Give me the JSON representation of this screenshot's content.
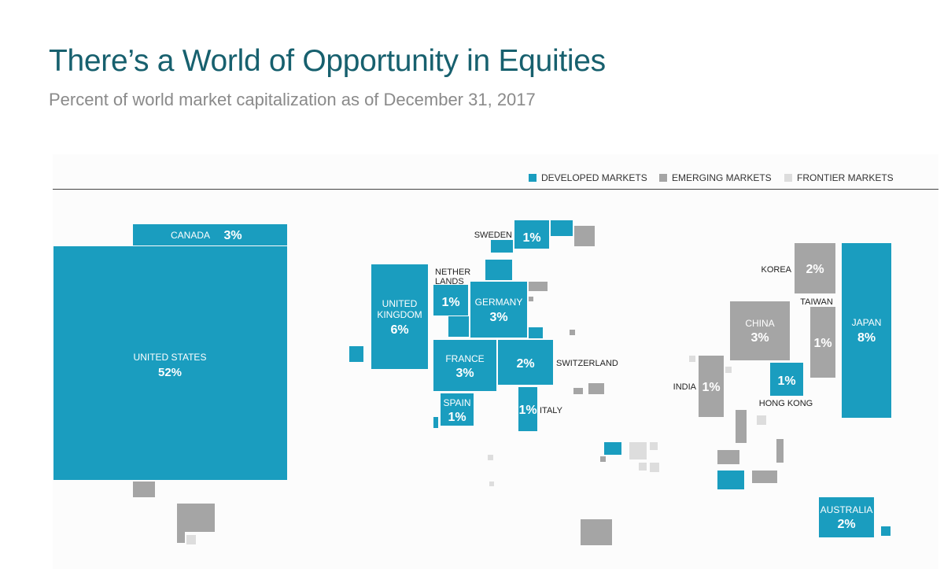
{
  "title": "There’s a World of Opportunity in Equities",
  "subtitle": "Percent of world market capitalization as of December 31, 2017",
  "colors": {
    "developed": "#1a9dbf",
    "emerging": "#a5a5a5",
    "frontier": "#dddddd",
    "title": "#17606e"
  },
  "legend": {
    "developed": "DEVELOPED MARKETS",
    "emerging": "EMERGING MARKETS",
    "frontier": "FRONTIER MARKETS"
  },
  "chart_data": {
    "type": "treemap",
    "unit": "%",
    "markets": [
      {
        "name": "UNITED STATES",
        "value": 52,
        "label": "52%",
        "category": "developed"
      },
      {
        "name": "JAPAN",
        "value": 8,
        "label": "8%",
        "category": "developed"
      },
      {
        "name": "UNITED KINGDOM",
        "value": 6,
        "label": "6%",
        "category": "developed"
      },
      {
        "name": "CANADA",
        "value": 3,
        "label": "3%",
        "category": "developed"
      },
      {
        "name": "GERMANY",
        "value": 3,
        "label": "3%",
        "category": "developed"
      },
      {
        "name": "FRANCE",
        "value": 3,
        "label": "3%",
        "category": "developed"
      },
      {
        "name": "CHINA",
        "value": 3,
        "label": "3%",
        "category": "emerging"
      },
      {
        "name": "SWITZERLAND",
        "value": 2,
        "label": "2%",
        "category": "developed"
      },
      {
        "name": "KOREA",
        "value": 2,
        "label": "2%",
        "category": "emerging"
      },
      {
        "name": "AUSTRALIA",
        "value": 2,
        "label": "2%",
        "category": "developed"
      },
      {
        "name": "SWEDEN",
        "value": 1,
        "label": "1%",
        "category": "developed"
      },
      {
        "name": "NETHER LANDS",
        "value": 1,
        "label": "1%",
        "category": "developed"
      },
      {
        "name": "SPAIN",
        "value": 1,
        "label": "1%",
        "category": "developed"
      },
      {
        "name": "ITALY",
        "value": 1,
        "label": "1%",
        "category": "developed"
      },
      {
        "name": "TAIWAN",
        "value": 1,
        "label": "1%",
        "category": "emerging"
      },
      {
        "name": "INDIA",
        "value": 1,
        "label": "1%",
        "category": "emerging"
      },
      {
        "name": "HONG KONG",
        "value": 1,
        "label": "1%",
        "category": "developed"
      }
    ]
  }
}
